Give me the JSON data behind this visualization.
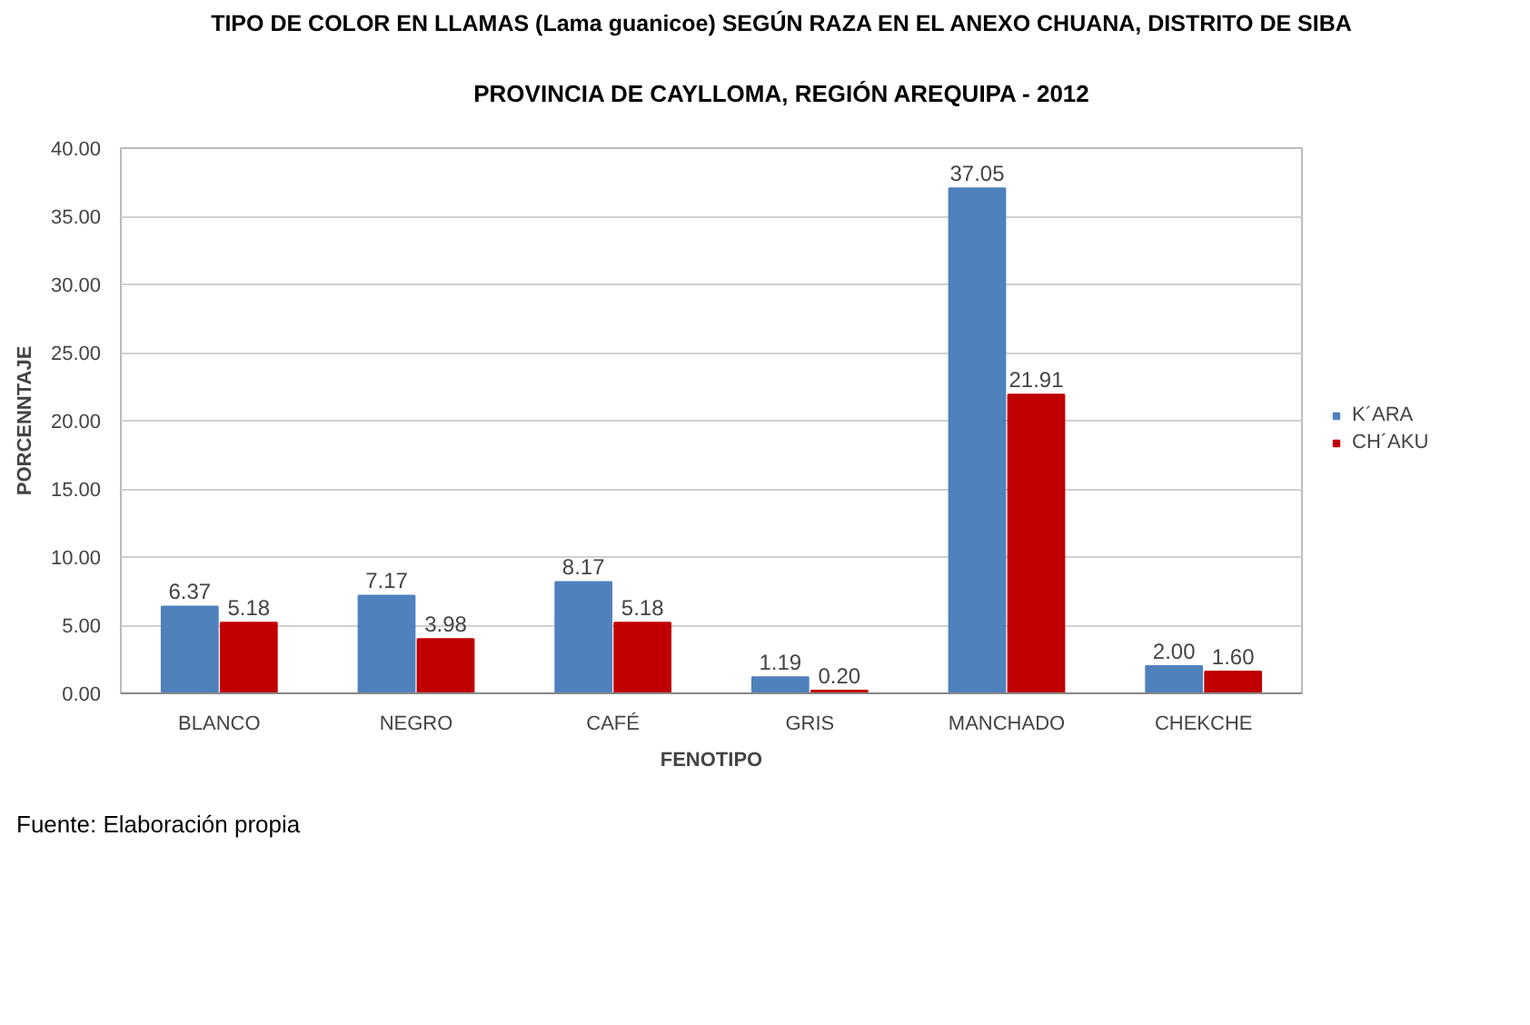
{
  "chart_data": {
    "type": "bar",
    "title": "TIPO DE COLOR EN LLAMAS (Lama guanicoe) SEGÚN RAZA EN EL ANEXO CHUANA, DISTRITO DE SIBA",
    "subtitle": "PROVINCIA DE CAYLLOMA, REGIÓN AREQUIPA - 2012",
    "xlabel": "FENOTIPO",
    "ylabel": "PORCENNTAJE",
    "categories": [
      "BLANCO",
      "NEGRO",
      "CAFÉ",
      "GRIS",
      "MANCHADO",
      "CHEKCHE"
    ],
    "series": [
      {
        "name": "K´ARA",
        "color": "#4f81bd",
        "values": [
          6.37,
          7.17,
          8.17,
          1.19,
          37.05,
          2.0
        ],
        "value_labels": [
          "6.37",
          "7.17",
          "8.17",
          "1.19",
          "37.05",
          "2.00"
        ]
      },
      {
        "name": "CH´AKU",
        "color": "#c00000",
        "values": [
          5.18,
          3.98,
          5.18,
          0.2,
          21.91,
          1.6
        ],
        "value_labels": [
          "5.18",
          "3.98",
          "5.18",
          "0.20",
          "21.91",
          "1.60"
        ]
      }
    ],
    "ylim": [
      0,
      40
    ],
    "yticks": [
      {
        "value": 0,
        "label": "0.00"
      },
      {
        "value": 5,
        "label": "5.00"
      },
      {
        "value": 10,
        "label": "10.00"
      },
      {
        "value": 15,
        "label": "15.00"
      },
      {
        "value": 20,
        "label": "20.00"
      },
      {
        "value": 25,
        "label": "25.00"
      },
      {
        "value": 30,
        "label": "30.00"
      },
      {
        "value": 35,
        "label": "35.00"
      },
      {
        "value": 40,
        "label": "40.00"
      }
    ],
    "grid": "y",
    "legend": "right",
    "annotations": [
      "Fuente: Elaboración propia"
    ]
  }
}
